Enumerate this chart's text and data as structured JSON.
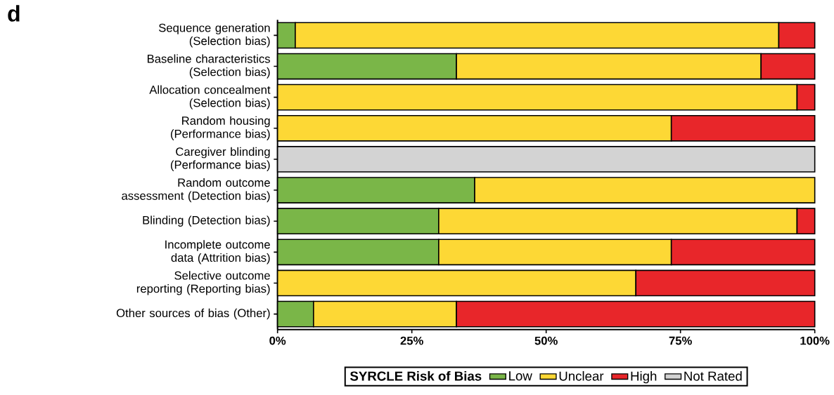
{
  "chart_data": {
    "type": "bar",
    "orientation": "horizontal",
    "stacked": true,
    "categories": [
      "Sequence generation (Selection bias)",
      "Baseline characteristics (Selection bias)",
      "Allocation concealment (Selection bias)",
      "Random housing (Performance bias)",
      "Caregiver blinding (Performance bias)",
      "Random outcome assessment (Detection bias)",
      "Blinding (Detection bias)",
      "Incomplete outcome data (Attrition bias)",
      "Selective outcome reporting (Reporting bias)",
      "Other sources of bias (Other)"
    ],
    "series": [
      {
        "name": "Low",
        "color": "#7ab648",
        "values": [
          3.3,
          33.3,
          null,
          null,
          null,
          36.7,
          30,
          30,
          null,
          6.7
        ]
      },
      {
        "name": "Unclear",
        "color": "#fdd835",
        "values": [
          90,
          56.7,
          96.7,
          73.3,
          null,
          63.3,
          66.7,
          43.3,
          66.7,
          26.6
        ]
      },
      {
        "name": "High",
        "color": "#e8262a",
        "values": [
          6.7,
          10,
          3.3,
          26.7,
          null,
          null,
          3.3,
          26.7,
          33.3,
          66.7
        ]
      },
      {
        "name": "Not Rated",
        "color": "#d3d3d3",
        "values": [
          null,
          null,
          null,
          null,
          100,
          null,
          null,
          null,
          null,
          null
        ]
      }
    ],
    "xlim": [
      0,
      100
    ],
    "xticks": [
      {
        "value": 0,
        "label": "0%"
      },
      {
        "value": 25,
        "label": "25%"
      },
      {
        "value": 50,
        "label": "50%"
      },
      {
        "value": 75,
        "label": "75%"
      },
      {
        "value": 100,
        "label": "100%"
      }
    ],
    "legend": "bottom",
    "legend_title": "SYRCLE Risk of Bias",
    "annotations": [
      "d"
    ]
  }
}
